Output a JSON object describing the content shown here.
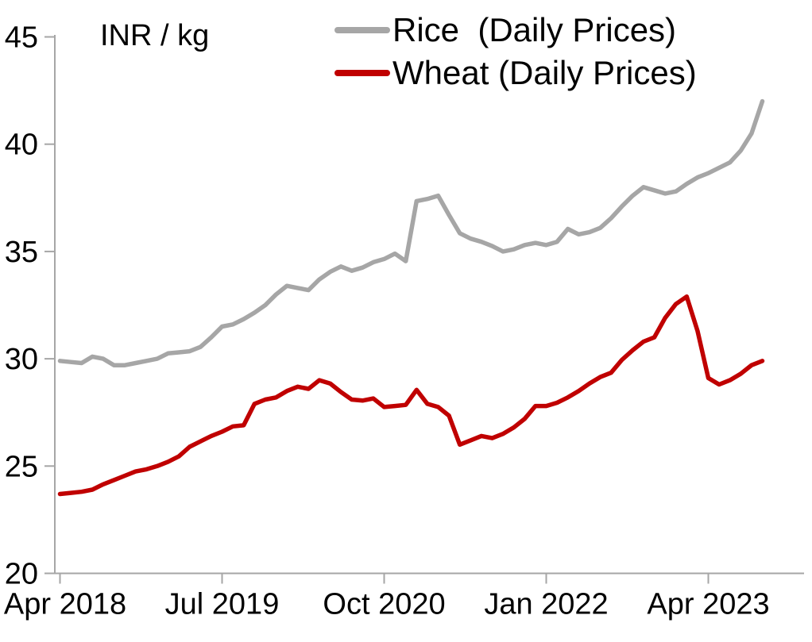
{
  "chart_data": {
    "type": "line",
    "title": "",
    "y_axis": {
      "label": "INR / kg",
      "min": 20,
      "max": 45,
      "tick_step": 5,
      "ticks": [
        45,
        40,
        35,
        30,
        25,
        20
      ]
    },
    "x_axis": {
      "frequency": "monthly",
      "n_points": 66,
      "start": "Apr 2018",
      "end": "Sep 2023",
      "ticks": [
        {
          "index": 0,
          "label": "Apr 2018"
        },
        {
          "index": 15,
          "label": "Jul 2019"
        },
        {
          "index": 30,
          "label": "Oct 2020"
        },
        {
          "index": 45,
          "label": "Jan 2022"
        },
        {
          "index": 60,
          "label": "Apr 2023"
        }
      ]
    },
    "legend_position": "top-center",
    "grid": false,
    "series": [
      {
        "name": "Rice  (Daily Prices)",
        "color": "#a6a6a6",
        "values": [
          29.9,
          29.85,
          29.8,
          30.1,
          30.0,
          29.7,
          29.7,
          29.8,
          29.9,
          30.0,
          30.25,
          30.3,
          30.35,
          30.55,
          31.0,
          31.5,
          31.6,
          31.85,
          32.15,
          32.5,
          33.0,
          33.4,
          33.3,
          33.2,
          33.7,
          34.05,
          34.3,
          34.1,
          34.25,
          34.5,
          34.65,
          34.9,
          34.55,
          37.35,
          37.45,
          37.6,
          36.7,
          35.85,
          35.6,
          35.45,
          35.25,
          35.0,
          35.1,
          35.3,
          35.4,
          35.3,
          35.45,
          36.05,
          35.8,
          35.9,
          36.1,
          36.55,
          37.1,
          37.6,
          38.0,
          37.85,
          37.7,
          37.8,
          38.15,
          38.45,
          38.65,
          38.9,
          39.15,
          39.7,
          40.5,
          42.0
        ]
      },
      {
        "name": "Wheat (Daily Prices)",
        "color": "#c00000",
        "values": [
          23.7,
          23.75,
          23.8,
          23.9,
          24.15,
          24.35,
          24.55,
          24.75,
          24.85,
          25.0,
          25.2,
          25.45,
          25.9,
          26.15,
          26.4,
          26.6,
          26.85,
          26.9,
          27.9,
          28.1,
          28.2,
          28.5,
          28.7,
          28.6,
          29.0,
          28.85,
          28.45,
          28.1,
          28.05,
          28.15,
          27.75,
          27.8,
          27.85,
          28.55,
          27.9,
          27.75,
          27.35,
          26.0,
          26.2,
          26.4,
          26.3,
          26.5,
          26.8,
          27.2,
          27.8,
          27.8,
          27.95,
          28.2,
          28.5,
          28.85,
          29.15,
          29.35,
          29.95,
          30.4,
          30.8,
          31.0,
          31.9,
          32.55,
          32.9,
          31.3,
          29.1,
          28.8,
          29.0,
          29.3,
          29.7,
          29.9
        ]
      }
    ]
  },
  "colors": {
    "axis": "#a6a6a6",
    "text": "#000000",
    "background": "#ffffff"
  }
}
